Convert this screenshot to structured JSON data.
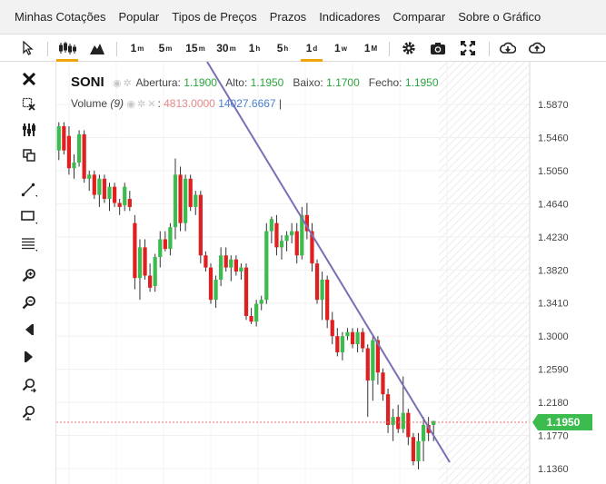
{
  "menu": [
    "Minhas Cotações",
    "Popular",
    "Tipos de Preços",
    "Prazos",
    "Indicadores",
    "Comparar",
    "Sobre o Gráfico"
  ],
  "toolbar": {
    "timeframes": [
      {
        "num": "1",
        "unit": "m"
      },
      {
        "num": "5",
        "unit": "m"
      },
      {
        "num": "15",
        "unit": "m"
      },
      {
        "num": "30",
        "unit": "m"
      },
      {
        "num": "1",
        "unit": "h"
      },
      {
        "num": "5",
        "unit": "h"
      },
      {
        "num": "1",
        "unit": "d",
        "active": true
      },
      {
        "num": "1",
        "unit": "w"
      },
      {
        "num": "1",
        "unit": "M"
      }
    ],
    "icons": [
      "cursor-icon",
      "candlestick-icon",
      "mountain-icon",
      "gear-icon",
      "camera-icon",
      "fullscreen-icon",
      "download-icon",
      "upload-icon"
    ]
  },
  "left_tools": [
    "close-icon",
    "remove-drawings-icon",
    "magnet-icon",
    "copy-icon",
    "line-tool-icon",
    "rectangle-tool-icon",
    "fib-tool-icon",
    "zoom-in-icon",
    "zoom-out-icon",
    "scroll-left-icon",
    "scroll-right-icon",
    "zoom-fit-icon",
    "zoom-reset-icon"
  ],
  "legend": {
    "symbol": "SONI",
    "open_label": "Abertura:",
    "open_value": "1.1900",
    "high_label": "Alto:",
    "high_value": "1.1950",
    "low_label": "Baixo:",
    "low_value": "1.1700",
    "close_label": "Fecho:",
    "close_value": "1.1950"
  },
  "volume": {
    "label": "Volume",
    "period": "(9)",
    "value1": "4813.0000",
    "value2": "14027.6667"
  },
  "colors": {
    "up": "#3cbc4e",
    "down": "#e02020",
    "trendline": "#7a6fb5",
    "price_tag": "#3cbc4e"
  },
  "chart_data": {
    "type": "candlestick",
    "y_ticks": [
      "1.5870",
      "1.5460",
      "1.5050",
      "1.4640",
      "1.4230",
      "1.3820",
      "1.3410",
      "1.3000",
      "1.2590",
      "1.2180",
      "1.1770",
      "1.1360"
    ],
    "last_price": "1.1950",
    "candles": [
      [
        1.53,
        1.565,
        1.518,
        1.56
      ],
      [
        1.56,
        1.565,
        1.525,
        1.53
      ],
      [
        1.548,
        1.56,
        1.5,
        1.508
      ],
      [
        1.508,
        1.525,
        1.495,
        1.515
      ],
      [
        1.515,
        1.555,
        1.51,
        1.55
      ],
      [
        1.55,
        1.555,
        1.49,
        1.495
      ],
      [
        1.495,
        1.505,
        1.48,
        1.5
      ],
      [
        1.5,
        1.505,
        1.47,
        1.475
      ],
      [
        1.475,
        1.5,
        1.46,
        1.495
      ],
      [
        1.495,
        1.5,
        1.465,
        1.47
      ],
      [
        1.47,
        1.49,
        1.455,
        1.485
      ],
      [
        1.485,
        1.49,
        1.46,
        1.465
      ],
      [
        1.465,
        1.47,
        1.45,
        1.46
      ],
      [
        1.462,
        1.49,
        1.455,
        1.485
      ],
      [
        1.47,
        1.48,
        1.455,
        1.46
      ],
      [
        1.44,
        1.45,
        1.358,
        1.372
      ],
      [
        1.372,
        1.42,
        1.345,
        1.41
      ],
      [
        1.41,
        1.42,
        1.37,
        1.375
      ],
      [
        1.375,
        1.39,
        1.355,
        1.36
      ],
      [
        1.362,
        1.402,
        1.355,
        1.398
      ],
      [
        1.398,
        1.43,
        1.385,
        1.42
      ],
      [
        1.42,
        1.43,
        1.405,
        1.408
      ],
      [
        1.408,
        1.44,
        1.4,
        1.435
      ],
      [
        1.435,
        1.52,
        1.42,
        1.5
      ],
      [
        1.5,
        1.51,
        1.43,
        1.44
      ],
      [
        1.44,
        1.5,
        1.43,
        1.495
      ],
      [
        1.495,
        1.5,
        1.455,
        1.46
      ],
      [
        1.46,
        1.48,
        1.45,
        1.475
      ],
      [
        1.475,
        1.48,
        1.39,
        1.4
      ],
      [
        1.4,
        1.405,
        1.38,
        1.385
      ],
      [
        1.385,
        1.39,
        1.34,
        1.345
      ],
      [
        1.345,
        1.375,
        1.335,
        1.37
      ],
      [
        1.37,
        1.41,
        1.362,
        1.4
      ],
      [
        1.4,
        1.41,
        1.38,
        1.385
      ],
      [
        1.385,
        1.4,
        1.368,
        1.395
      ],
      [
        1.395,
        1.4,
        1.375,
        1.38
      ],
      [
        1.38,
        1.39,
        1.37,
        1.385
      ],
      [
        1.385,
        1.39,
        1.32,
        1.325
      ],
      [
        1.325,
        1.335,
        1.315,
        1.318
      ],
      [
        1.318,
        1.345,
        1.312,
        1.34
      ],
      [
        1.34,
        1.35,
        1.332,
        1.345
      ],
      [
        1.345,
        1.44,
        1.34,
        1.43
      ],
      [
        1.43,
        1.448,
        1.415,
        1.445
      ],
      [
        1.44,
        1.45,
        1.4,
        1.41
      ],
      [
        1.41,
        1.425,
        1.395,
        1.418
      ],
      [
        1.418,
        1.43,
        1.405,
        1.425
      ],
      [
        1.425,
        1.44,
        1.415,
        1.43
      ],
      [
        1.43,
        1.44,
        1.39,
        1.4
      ],
      [
        1.4,
        1.46,
        1.395,
        1.45
      ],
      [
        1.45,
        1.465,
        1.42,
        1.43
      ],
      [
        1.43,
        1.44,
        1.38,
        1.39
      ],
      [
        1.39,
        1.395,
        1.34,
        1.345
      ],
      [
        1.345,
        1.38,
        1.32,
        1.37
      ],
      [
        1.37,
        1.375,
        1.31,
        1.32
      ],
      [
        1.32,
        1.33,
        1.29,
        1.3
      ],
      [
        1.3,
        1.31,
        1.275,
        1.28
      ],
      [
        1.28,
        1.305,
        1.27,
        1.3
      ],
      [
        1.3,
        1.31,
        1.295,
        1.305
      ],
      [
        1.305,
        1.31,
        1.285,
        1.29
      ],
      [
        1.29,
        1.31,
        1.28,
        1.305
      ],
      [
        1.305,
        1.31,
        1.28,
        1.285
      ],
      [
        1.285,
        1.29,
        1.2,
        1.245
      ],
      [
        1.245,
        1.3,
        1.22,
        1.295
      ],
      [
        1.295,
        1.3,
        1.24,
        1.255
      ],
      [
        1.255,
        1.26,
        1.22,
        1.228
      ],
      [
        1.228,
        1.235,
        1.18,
        1.19
      ],
      [
        1.19,
        1.21,
        1.17,
        1.2
      ],
      [
        1.2,
        1.215,
        1.18,
        1.185
      ],
      [
        1.185,
        1.25,
        1.18,
        1.205
      ],
      [
        1.205,
        1.21,
        1.165,
        1.175
      ],
      [
        1.175,
        1.18,
        1.14,
        1.145
      ],
      [
        1.145,
        1.18,
        1.135,
        1.17
      ],
      [
        1.17,
        1.2,
        1.145,
        1.19
      ],
      [
        1.19,
        1.2,
        1.17,
        1.18
      ],
      [
        1.19,
        1.195,
        1.17,
        1.195
      ]
    ]
  }
}
